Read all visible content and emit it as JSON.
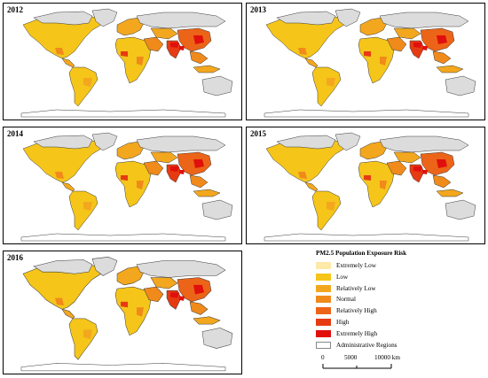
{
  "panels": [
    {
      "year": "2012"
    },
    {
      "year": "2013"
    },
    {
      "year": "2014"
    },
    {
      "year": "2015"
    },
    {
      "year": "2016"
    }
  ],
  "colors": {
    "background": "#dcdcdc",
    "extremely_low": "#fde9a8",
    "low": "#f5c51a",
    "relatively_low": "#f3a71e",
    "normal": "#f08a1a",
    "relatively_high": "#ec6418",
    "high": "#e63b12",
    "extremely_high": "#e0100c"
  },
  "legend": {
    "title": "PM2.5 Population Exposure Risk",
    "items": [
      {
        "label": "Extremely Low",
        "color": "#fde9a8"
      },
      {
        "label": "Low",
        "color": "#f5c51a"
      },
      {
        "label": "Relatively Low",
        "color": "#f3a71e"
      },
      {
        "label": "Normal",
        "color": "#f08a1a"
      },
      {
        "label": "Relatively High",
        "color": "#ec6418"
      },
      {
        "label": "High",
        "color": "#e63b12"
      },
      {
        "label": "Extremely High",
        "color": "#e0100c"
      },
      {
        "label": "Administrative Regions",
        "color": "#ffffff"
      }
    ],
    "scale": {
      "zero": "0",
      "mid": "5000",
      "max": "10000 km"
    }
  }
}
